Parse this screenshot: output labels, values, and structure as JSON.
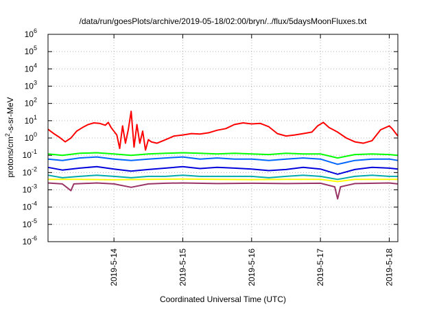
{
  "chart_data": {
    "type": "line",
    "title": "/data/run/goesPlots/archive/2019-05-18/02:00/bryn/../flux/5daysMoonFluxes.txt",
    "xlabel": "Coordinated Universal Time (UTC)",
    "ylabel": "protons/cm²-s-sr-MeV",
    "y_scale": "log",
    "ylim": [
      1e-06,
      1000000.0
    ],
    "xlim": [
      "2019-05-13T01:00",
      "2019-05-18T03:00"
    ],
    "grid": true,
    "legend": "none",
    "x_tick_labels": [
      "2019-5-14",
      "2019-5-15",
      "2019-5-16",
      "2019-5-17",
      "2019-5-18"
    ],
    "x_tick_values": [
      "2019-05-14T00:00",
      "2019-05-15T00:00",
      "2019-05-16T00:00",
      "2019-05-17T00:00",
      "2019-05-18T00:00"
    ],
    "y_ticks": [
      {
        "base": "10",
        "exp": "-6",
        "value": 1e-06
      },
      {
        "base": "10",
        "exp": "-5",
        "value": 1e-05
      },
      {
        "base": "10",
        "exp": "-4",
        "value": 0.0001
      },
      {
        "base": "10",
        "exp": "-3",
        "value": 0.001
      },
      {
        "base": "10",
        "exp": "-2",
        "value": 0.01
      },
      {
        "base": "10",
        "exp": "-1",
        "value": 0.1
      },
      {
        "base": "10",
        "exp": "0",
        "value": 1
      },
      {
        "base": "10",
        "exp": "1",
        "value": 10
      },
      {
        "base": "10",
        "exp": "2",
        "value": 100
      },
      {
        "base": "10",
        "exp": "3",
        "value": 1000
      },
      {
        "base": "10",
        "exp": "4",
        "value": 10000
      },
      {
        "base": "10",
        "exp": "5",
        "value": 100000
      },
      {
        "base": "10",
        "exp": "6",
        "value": 1000000
      }
    ],
    "series": [
      {
        "color": "#ff0000",
        "points": [
          [
            "2019-05-13T01:00",
            3.2
          ],
          [
            "2019-05-13T03:00",
            1.8
          ],
          [
            "2019-05-13T05:00",
            1.1
          ],
          [
            "2019-05-13T07:00",
            0.6
          ],
          [
            "2019-05-13T09:00",
            1.0
          ],
          [
            "2019-05-13T11:00",
            2.5
          ],
          [
            "2019-05-13T13:00",
            4.0
          ],
          [
            "2019-05-13T15:00",
            6.0
          ],
          [
            "2019-05-13T17:00",
            7.5
          ],
          [
            "2019-05-13T19:00",
            7.0
          ],
          [
            "2019-05-13T21:00",
            5.5
          ],
          [
            "2019-05-13T22:00",
            8.0
          ],
          [
            "2019-05-13T23:00",
            4.0
          ],
          [
            "2019-05-14T01:00",
            1.5
          ],
          [
            "2019-05-14T02:00",
            0.25
          ],
          [
            "2019-05-14T03:00",
            5.0
          ],
          [
            "2019-05-14T04:00",
            0.5
          ],
          [
            "2019-05-14T05:00",
            3.0
          ],
          [
            "2019-05-14T06:00",
            35.0
          ],
          [
            "2019-05-14T07:00",
            0.3
          ],
          [
            "2019-05-14T08:00",
            6.0
          ],
          [
            "2019-05-14T09:00",
            0.5
          ],
          [
            "2019-05-14T10:00",
            2.5
          ],
          [
            "2019-05-14T11:00",
            0.2
          ],
          [
            "2019-05-14T12:00",
            0.8
          ],
          [
            "2019-05-14T13:00",
            0.6
          ],
          [
            "2019-05-14T15:00",
            0.5
          ],
          [
            "2019-05-14T18:00",
            0.8
          ],
          [
            "2019-05-14T21:00",
            1.3
          ],
          [
            "2019-05-15T00:00",
            1.5
          ],
          [
            "2019-05-15T03:00",
            1.8
          ],
          [
            "2019-05-15T06:00",
            1.7
          ],
          [
            "2019-05-15T09:00",
            2.0
          ],
          [
            "2019-05-15T12:00",
            2.8
          ],
          [
            "2019-05-15T15:00",
            3.5
          ],
          [
            "2019-05-15T18:00",
            6.0
          ],
          [
            "2019-05-15T21:00",
            7.5
          ],
          [
            "2019-05-16T00:00",
            6.5
          ],
          [
            "2019-05-16T03:00",
            7.0
          ],
          [
            "2019-05-16T06:00",
            4.5
          ],
          [
            "2019-05-16T09:00",
            1.8
          ],
          [
            "2019-05-16T12:00",
            1.3
          ],
          [
            "2019-05-16T15:00",
            1.5
          ],
          [
            "2019-05-16T18:00",
            1.8
          ],
          [
            "2019-05-16T21:00",
            2.2
          ],
          [
            "2019-05-16T23:00",
            5.0
          ],
          [
            "2019-05-17T01:00",
            8.0
          ],
          [
            "2019-05-17T03:00",
            4.0
          ],
          [
            "2019-05-17T06:00",
            2.2
          ],
          [
            "2019-05-17T09:00",
            1.0
          ],
          [
            "2019-05-17T12:00",
            0.6
          ],
          [
            "2019-05-17T15:00",
            0.5
          ],
          [
            "2019-05-17T18:00",
            0.7
          ],
          [
            "2019-05-17T21:00",
            3.0
          ],
          [
            "2019-05-18T00:00",
            5.0
          ],
          [
            "2019-05-18T01:00",
            3.5
          ],
          [
            "2019-05-18T03:00",
            1.3
          ]
        ]
      },
      {
        "color": "#00ff00",
        "points": [
          [
            "2019-05-13T01:00",
            0.12
          ],
          [
            "2019-05-13T06:00",
            0.1
          ],
          [
            "2019-05-13T12:00",
            0.13
          ],
          [
            "2019-05-13T18:00",
            0.14
          ],
          [
            "2019-05-14T00:00",
            0.12
          ],
          [
            "2019-05-14T06:00",
            0.1
          ],
          [
            "2019-05-14T12:00",
            0.12
          ],
          [
            "2019-05-14T18:00",
            0.13
          ],
          [
            "2019-05-15T00:00",
            0.14
          ],
          [
            "2019-05-15T06:00",
            0.13
          ],
          [
            "2019-05-15T12:00",
            0.12
          ],
          [
            "2019-05-15T18:00",
            0.13
          ],
          [
            "2019-05-16T00:00",
            0.12
          ],
          [
            "2019-05-16T06:00",
            0.11
          ],
          [
            "2019-05-16T12:00",
            0.13
          ],
          [
            "2019-05-16T18:00",
            0.12
          ],
          [
            "2019-05-17T00:00",
            0.12
          ],
          [
            "2019-05-17T06:00",
            0.07
          ],
          [
            "2019-05-17T12:00",
            0.11
          ],
          [
            "2019-05-17T18:00",
            0.12
          ],
          [
            "2019-05-18T00:00",
            0.11
          ],
          [
            "2019-05-18T03:00",
            0.1
          ]
        ]
      },
      {
        "color": "#0066ff",
        "points": [
          [
            "2019-05-13T01:00",
            0.06
          ],
          [
            "2019-05-13T06:00",
            0.05
          ],
          [
            "2019-05-13T12:00",
            0.07
          ],
          [
            "2019-05-13T18:00",
            0.08
          ],
          [
            "2019-05-14T00:00",
            0.06
          ],
          [
            "2019-05-14T06:00",
            0.05
          ],
          [
            "2019-05-14T12:00",
            0.06
          ],
          [
            "2019-05-14T18:00",
            0.07
          ],
          [
            "2019-05-15T00:00",
            0.08
          ],
          [
            "2019-05-15T06:00",
            0.06
          ],
          [
            "2019-05-15T12:00",
            0.07
          ],
          [
            "2019-05-15T18:00",
            0.06
          ],
          [
            "2019-05-16T00:00",
            0.06
          ],
          [
            "2019-05-16T06:00",
            0.05
          ],
          [
            "2019-05-16T12:00",
            0.06
          ],
          [
            "2019-05-16T18:00",
            0.07
          ],
          [
            "2019-05-17T00:00",
            0.06
          ],
          [
            "2019-05-17T06:00",
            0.03
          ],
          [
            "2019-05-17T12:00",
            0.05
          ],
          [
            "2019-05-17T18:00",
            0.06
          ],
          [
            "2019-05-18T00:00",
            0.06
          ],
          [
            "2019-05-18T03:00",
            0.05
          ]
        ]
      },
      {
        "color": "#0000dd",
        "points": [
          [
            "2019-05-13T01:00",
            0.02
          ],
          [
            "2019-05-13T06:00",
            0.014
          ],
          [
            "2019-05-13T12:00",
            0.018
          ],
          [
            "2019-05-13T18:00",
            0.022
          ],
          [
            "2019-05-14T00:00",
            0.016
          ],
          [
            "2019-05-14T06:00",
            0.012
          ],
          [
            "2019-05-14T12:00",
            0.015
          ],
          [
            "2019-05-14T18:00",
            0.018
          ],
          [
            "2019-05-15T00:00",
            0.022
          ],
          [
            "2019-05-15T06:00",
            0.017
          ],
          [
            "2019-05-15T12:00",
            0.02
          ],
          [
            "2019-05-15T18:00",
            0.018
          ],
          [
            "2019-05-16T00:00",
            0.016
          ],
          [
            "2019-05-16T06:00",
            0.013
          ],
          [
            "2019-05-16T12:00",
            0.015
          ],
          [
            "2019-05-16T18:00",
            0.02
          ],
          [
            "2019-05-17T00:00",
            0.016
          ],
          [
            "2019-05-17T06:00",
            0.008
          ],
          [
            "2019-05-17T12:00",
            0.015
          ],
          [
            "2019-05-17T18:00",
            0.02
          ],
          [
            "2019-05-18T00:00",
            0.018
          ],
          [
            "2019-05-18T03:00",
            0.016
          ]
        ]
      },
      {
        "color": "#00aaaa",
        "points": [
          [
            "2019-05-13T01:00",
            0.007
          ],
          [
            "2019-05-13T06:00",
            0.005
          ],
          [
            "2019-05-13T12:00",
            0.006
          ],
          [
            "2019-05-13T18:00",
            0.007
          ],
          [
            "2019-05-14T00:00",
            0.006
          ],
          [
            "2019-05-14T06:00",
            0.005
          ],
          [
            "2019-05-14T12:00",
            0.006
          ],
          [
            "2019-05-14T18:00",
            0.006
          ],
          [
            "2019-05-15T00:00",
            0.007
          ],
          [
            "2019-05-15T06:00",
            0.006
          ],
          [
            "2019-05-15T12:00",
            0.006
          ],
          [
            "2019-05-15T18:00",
            0.006
          ],
          [
            "2019-05-16T00:00",
            0.006
          ],
          [
            "2019-05-16T06:00",
            0.005
          ],
          [
            "2019-05-16T12:00",
            0.006
          ],
          [
            "2019-05-16T18:00",
            0.007
          ],
          [
            "2019-05-17T00:00",
            0.006
          ],
          [
            "2019-05-17T06:00",
            0.004
          ],
          [
            "2019-05-17T12:00",
            0.006
          ],
          [
            "2019-05-17T18:00",
            0.007
          ],
          [
            "2019-05-18T00:00",
            0.006
          ],
          [
            "2019-05-18T03:00",
            0.006
          ]
        ]
      },
      {
        "color": "#ffff00",
        "points": [
          [
            "2019-05-13T01:00",
            0.004
          ],
          [
            "2019-05-13T12:00",
            0.004
          ],
          [
            "2019-05-14T00:00",
            0.0038
          ],
          [
            "2019-05-14T12:00",
            0.004
          ],
          [
            "2019-05-15T00:00",
            0.0042
          ],
          [
            "2019-05-15T12:00",
            0.004
          ],
          [
            "2019-05-16T00:00",
            0.0039
          ],
          [
            "2019-05-16T12:00",
            0.004
          ],
          [
            "2019-05-17T00:00",
            0.004
          ],
          [
            "2019-05-17T06:00",
            0.003
          ],
          [
            "2019-05-17T12:00",
            0.004
          ],
          [
            "2019-05-18T00:00",
            0.004
          ],
          [
            "2019-05-18T03:00",
            0.004
          ]
        ]
      },
      {
        "color": "#993366",
        "points": [
          [
            "2019-05-13T01:00",
            0.0025
          ],
          [
            "2019-05-13T06:00",
            0.0022
          ],
          [
            "2019-05-13T09:00",
            0.0009
          ],
          [
            "2019-05-13T10:00",
            0.0022
          ],
          [
            "2019-05-13T18:00",
            0.0025
          ],
          [
            "2019-05-14T00:00",
            0.0022
          ],
          [
            "2019-05-14T06:00",
            0.0014
          ],
          [
            "2019-05-14T12:00",
            0.0022
          ],
          [
            "2019-05-14T18:00",
            0.0024
          ],
          [
            "2019-05-15T00:00",
            0.0025
          ],
          [
            "2019-05-15T12:00",
            0.0023
          ],
          [
            "2019-05-16T00:00",
            0.0024
          ],
          [
            "2019-05-16T12:00",
            0.0023
          ],
          [
            "2019-05-17T00:00",
            0.0024
          ],
          [
            "2019-05-17T05:00",
            0.0015
          ],
          [
            "2019-05-17T06:00",
            0.0003
          ],
          [
            "2019-05-17T07:00",
            0.0015
          ],
          [
            "2019-05-17T12:00",
            0.0023
          ],
          [
            "2019-05-18T00:00",
            0.0025
          ],
          [
            "2019-05-18T03:00",
            0.0022
          ]
        ]
      }
    ]
  }
}
